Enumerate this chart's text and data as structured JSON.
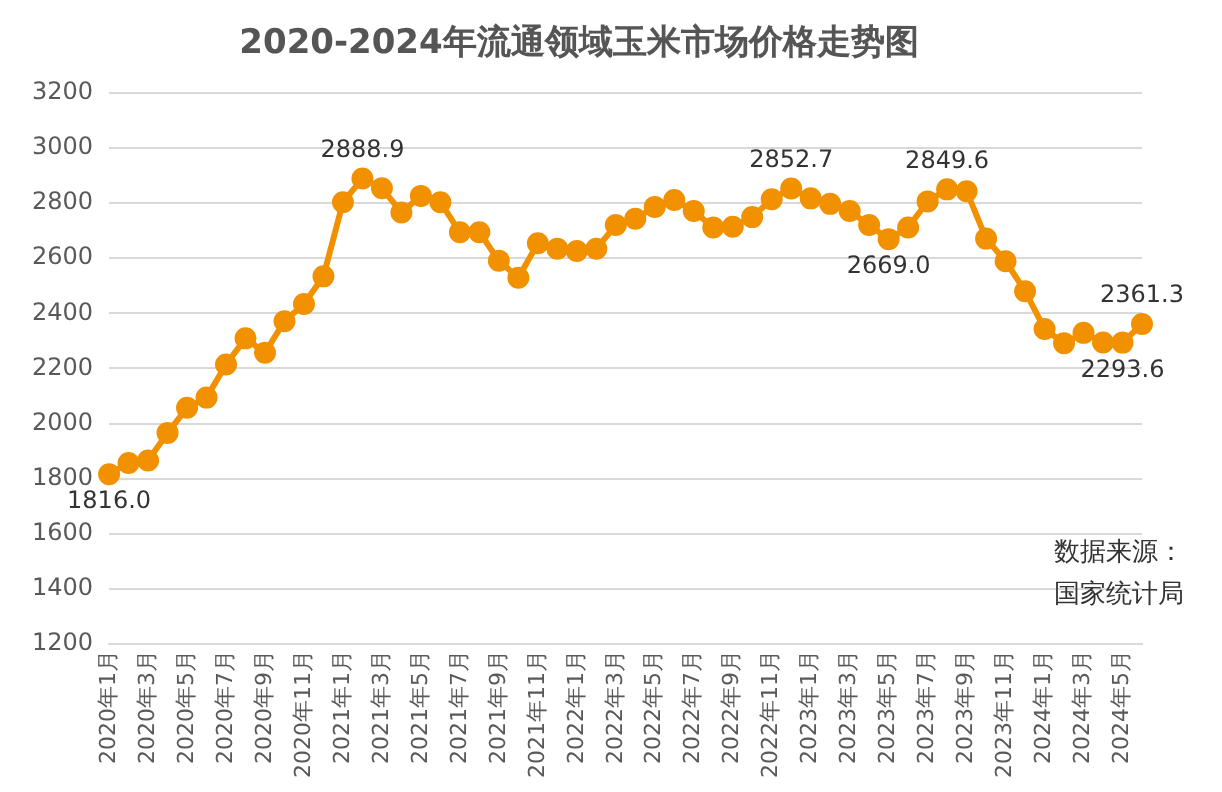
{
  "chart_data": {
    "type": "line",
    "title": "2020-2024年流通领域玉米市场价格走势图",
    "categories": [
      "2020年1月",
      null,
      "2020年3月",
      null,
      "2020年5月",
      null,
      "2020年7月",
      null,
      "2020年9月",
      null,
      "2020年11月",
      null,
      "2021年1月",
      null,
      "2021年3月",
      null,
      "2021年5月",
      null,
      "2021年7月",
      null,
      "2021年9月",
      null,
      "2021年11月",
      null,
      "2022年1月",
      null,
      "2022年3月",
      null,
      "2022年5月",
      null,
      "2022年7月",
      null,
      "2022年9月",
      null,
      "2022年11月",
      null,
      "2023年1月",
      null,
      "2023年3月",
      null,
      "2023年5月",
      null,
      "2023年7月",
      null,
      "2023年9月",
      null,
      "2023年11月",
      null,
      "2024年1月",
      null,
      "2024年3月",
      null,
      "2024年5月",
      null
    ],
    "series": [
      {
        "color": "#f29100",
        "values": [
          1816.0,
          1857,
          1866,
          1966,
          2057,
          2094,
          2214,
          2309,
          2257,
          2371,
          2434,
          2534,
          2803,
          2888.9,
          2854,
          2766,
          2826,
          2803,
          2694,
          2694,
          2591,
          2529,
          2654,
          2634,
          2626,
          2634,
          2720,
          2743,
          2786,
          2811,
          2771,
          2711,
          2714,
          2749,
          2814,
          2852.7,
          2817,
          2797,
          2771,
          2720,
          2669.0,
          2711,
          2806,
          2849.6,
          2843,
          2671,
          2589,
          2480,
          2343,
          2291,
          2329,
          2294,
          2293.6,
          2361.3
        ],
        "value_labels": [
          "1816.0",
          null,
          null,
          null,
          null,
          null,
          null,
          null,
          null,
          null,
          null,
          null,
          null,
          "2888.9",
          null,
          null,
          null,
          null,
          null,
          null,
          null,
          null,
          null,
          null,
          null,
          null,
          null,
          null,
          null,
          null,
          null,
          null,
          null,
          null,
          null,
          "2852.7",
          null,
          null,
          null,
          null,
          "2669.0",
          null,
          null,
          "2849.6",
          null,
          null,
          null,
          null,
          null,
          null,
          null,
          null,
          "2293.6",
          "2361.3"
        ]
      }
    ],
    "ylim": [
      1200,
      3200
    ],
    "yticks": [
      1200,
      1400,
      1600,
      1800,
      2000,
      2200,
      2400,
      2600,
      2800,
      3000,
      3200
    ],
    "grid": "y",
    "legend": false,
    "marker": "circle",
    "line_style": "solid",
    "annotations": [
      "数据来源：国家统计局"
    ]
  }
}
